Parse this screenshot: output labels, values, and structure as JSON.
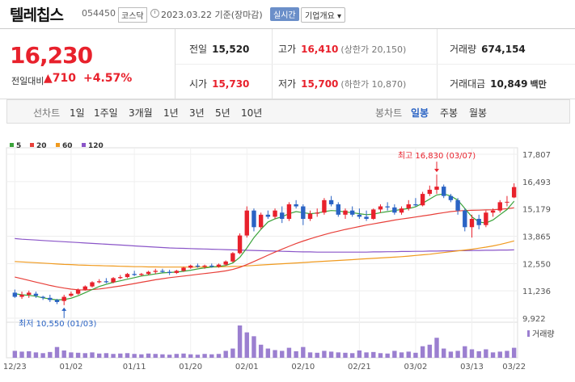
{
  "header": {
    "name": "텔레칩스",
    "code": "054450",
    "market": "코스닥",
    "date_text": "2023.03.22  기준(장마감)",
    "realtime": "실시간",
    "company_info": "기업개요 ▾"
  },
  "price": {
    "current": "16,230",
    "change_label": "전일대비",
    "change": "▲710",
    "change_pct": "+4.57%"
  },
  "summary": {
    "prev_label": "전일",
    "prev": "15,520",
    "high_label": "고가",
    "high": "16,410",
    "high_note": "(상한가 20,150)",
    "volume_label": "거래량",
    "volume": "674,154",
    "open_label": "시가",
    "open": "15,730",
    "low_label": "저가",
    "low": "15,700",
    "low_note": "(하한가 10,870)",
    "amount_label": "거래대금",
    "amount": "10,849",
    "amount_unit": "백만"
  },
  "periods": {
    "line_label": "선차트",
    "items": [
      "1일",
      "1주일",
      "3개월",
      "1년",
      "3년",
      "5년",
      "10년"
    ],
    "candle_label": "봉차트",
    "candle_items": [
      "일봉",
      "주봉",
      "월봉"
    ],
    "selected_candle": "일봉"
  },
  "chart_data": {
    "type": "candlestick",
    "legend": [
      {
        "label": "5",
        "color": "#3aa33a"
      },
      {
        "label": "20",
        "color": "#e8403a"
      },
      {
        "label": "60",
        "color": "#f09a1e"
      },
      {
        "label": "120",
        "color": "#8a55c8"
      }
    ],
    "y_ticks": [
      "17,807",
      "16,493",
      "15,179",
      "13,865",
      "12,550",
      "11,236",
      "9,922"
    ],
    "y_range": [
      9922,
      17807
    ],
    "x_ticks": [
      "12/23",
      "01/02",
      "01/11",
      "01/20",
      "02/01",
      "02/10",
      "02/21",
      "03/02",
      "03/13",
      "03/22"
    ],
    "annotations": {
      "max": "최고 16,830 (03/07)",
      "min": "최저 10,550 (01/03)"
    },
    "volume_label": "거래량",
    "candles": [
      [
        11150,
        11300,
        10900,
        10950
      ],
      [
        10950,
        11200,
        10850,
        11050
      ],
      [
        11050,
        11250,
        10900,
        11150
      ],
      [
        11100,
        11200,
        10900,
        11000
      ],
      [
        10950,
        11000,
        10800,
        10900
      ],
      [
        10900,
        11050,
        10700,
        10800
      ],
      [
        10800,
        10850,
        10600,
        10700
      ],
      [
        10750,
        11050,
        10550,
        10950
      ],
      [
        11000,
        11200,
        10950,
        11100
      ],
      [
        11100,
        11350,
        11050,
        11300
      ],
      [
        11300,
        11500,
        11250,
        11450
      ],
      [
        11450,
        11700,
        11400,
        11650
      ],
      [
        11650,
        11800,
        11600,
        11700
      ],
      [
        11700,
        11850,
        11600,
        11650
      ],
      [
        11650,
        11900,
        11600,
        11850
      ],
      [
        11850,
        12000,
        11800,
        11900
      ],
      [
        11900,
        12100,
        11850,
        12050
      ],
      [
        12050,
        12200,
        11950,
        12000
      ],
      [
        12000,
        12100,
        11950,
        12050
      ],
      [
        12050,
        12200,
        12000,
        12150
      ],
      [
        12150,
        12300,
        12050,
        12200
      ],
      [
        12200,
        12300,
        12100,
        12150
      ],
      [
        12150,
        12250,
        12000,
        12100
      ],
      [
        12100,
        12250,
        12050,
        12200
      ],
      [
        12200,
        12400,
        12150,
        12350
      ],
      [
        12350,
        12500,
        12300,
        12450
      ],
      [
        12450,
        12550,
        12350,
        12400
      ],
      [
        12400,
        12500,
        12300,
        12450
      ],
      [
        12450,
        12550,
        12350,
        12400
      ],
      [
        12400,
        12550,
        12350,
        12500
      ],
      [
        12500,
        12700,
        12450,
        12650
      ],
      [
        12650,
        13100,
        12600,
        13050
      ],
      [
        13050,
        14000,
        13000,
        13900
      ],
      [
        13900,
        15300,
        13800,
        15100
      ],
      [
        15100,
        15200,
        14100,
        14300
      ],
      [
        14300,
        15000,
        14200,
        14900
      ],
      [
        14900,
        15100,
        14700,
        14800
      ],
      [
        14800,
        15200,
        14700,
        15100
      ],
      [
        15000,
        15300,
        14500,
        14700
      ],
      [
        14700,
        15500,
        14600,
        15400
      ],
      [
        15400,
        15600,
        15200,
        15300
      ],
      [
        15300,
        15400,
        14400,
        14700
      ],
      [
        14700,
        15100,
        14600,
        14950
      ],
      [
        14950,
        15200,
        14800,
        15000
      ],
      [
        15000,
        15700,
        14900,
        15600
      ],
      [
        15600,
        15800,
        15300,
        15400
      ],
      [
        15400,
        15500,
        14800,
        14900
      ],
      [
        14900,
        15200,
        14700,
        15100
      ],
      [
        15100,
        15300,
        14800,
        14900
      ],
      [
        14900,
        15200,
        14700,
        14800
      ],
      [
        14800,
        15100,
        14600,
        14700
      ],
      [
        14700,
        15200,
        14650,
        15150
      ],
      [
        15150,
        15400,
        15000,
        15300
      ],
      [
        15300,
        15500,
        15100,
        15250
      ],
      [
        15250,
        15400,
        14900,
        15000
      ],
      [
        15000,
        15300,
        14900,
        15200
      ],
      [
        15200,
        15600,
        15100,
        15400
      ],
      [
        15400,
        15700,
        15300,
        15350
      ],
      [
        15350,
        16000,
        15300,
        15900
      ],
      [
        15900,
        16300,
        15800,
        16100
      ],
      [
        16100,
        16830,
        15900,
        16250
      ],
      [
        16250,
        16350,
        15700,
        15800
      ],
      [
        15800,
        15900,
        15500,
        15600
      ],
      [
        15600,
        15700,
        14900,
        15100
      ],
      [
        15100,
        15200,
        14100,
        14300
      ],
      [
        14300,
        14900,
        13800,
        14700
      ],
      [
        14700,
        14900,
        14200,
        14400
      ],
      [
        14400,
        15100,
        14300,
        15000
      ],
      [
        15000,
        15200,
        14800,
        15100
      ],
      [
        15100,
        15600,
        15000,
        15500
      ],
      [
        15500,
        15800,
        15300,
        15520
      ],
      [
        15730,
        16410,
        15700,
        16230
      ]
    ],
    "ma5": [
      11100,
      11050,
      11020,
      10980,
      10900,
      10850,
      10800,
      10820,
      10880,
      11000,
      11150,
      11300,
      11450,
      11550,
      11650,
      11720,
      11800,
      11870,
      11950,
      12000,
      12050,
      12100,
      12120,
      12140,
      12180,
      12230,
      12290,
      12340,
      12380,
      12410,
      12460,
      12580,
      12850,
      13300,
      13800,
      14200,
      14550,
      14700,
      14800,
      14950,
      15050,
      15000,
      14950,
      14980,
      15050,
      15100,
      15080,
      15030,
      15000,
      14950,
      14900,
      14930,
      15000,
      15050,
      15100,
      15150,
      15200,
      15280,
      15450,
      15650,
      15850,
      15900,
      15800,
      15600,
      15200,
      14800,
      14550,
      14500,
      14650,
      14900,
      15150,
      15550
    ],
    "ma20": [
      11900,
      11820,
      11740,
      11660,
      11580,
      11500,
      11430,
      11370,
      11320,
      11290,
      11280,
      11300,
      11330,
      11370,
      11420,
      11470,
      11530,
      11590,
      11650,
      11710,
      11770,
      11820,
      11870,
      11910,
      11950,
      11990,
      12030,
      12070,
      12110,
      12150,
      12200,
      12270,
      12370,
      12500,
      12650,
      12800,
      12950,
      13100,
      13240,
      13380,
      13510,
      13630,
      13740,
      13840,
      13940,
      14030,
      14110,
      14190,
      14260,
      14330,
      14400,
      14460,
      14520,
      14580,
      14640,
      14690,
      14740,
      14790,
      14840,
      14890,
      14950,
      15000,
      15050,
      15080,
      15100,
      15110,
      15120,
      15130,
      15140,
      15160,
      15190,
      15230
    ],
    "ma60": [
      12650,
      12630,
      12610,
      12590,
      12570,
      12550,
      12530,
      12510,
      12500,
      12480,
      12470,
      12460,
      12450,
      12440,
      12430,
      12420,
      12410,
      12400,
      12400,
      12390,
      12390,
      12380,
      12380,
      12380,
      12380,
      12380,
      12380,
      12380,
      12390,
      12390,
      12400,
      12410,
      12420,
      12440,
      12460,
      12480,
      12500,
      12520,
      12540,
      12560,
      12580,
      12600,
      12620,
      12640,
      12660,
      12680,
      12700,
      12720,
      12740,
      12760,
      12780,
      12800,
      12820,
      12840,
      12860,
      12880,
      12910,
      12940,
      12970,
      13000,
      13040,
      13080,
      13120,
      13160,
      13200,
      13240,
      13290,
      13340,
      13400,
      13470,
      13550,
      13640
    ],
    "ma120": [
      13750,
      13720,
      13700,
      13680,
      13660,
      13640,
      13620,
      13600,
      13580,
      13560,
      13540,
      13520,
      13500,
      13480,
      13460,
      13440,
      13420,
      13400,
      13380,
      13360,
      13340,
      13320,
      13300,
      13290,
      13280,
      13270,
      13260,
      13250,
      13240,
      13230,
      13220,
      13210,
      13200,
      13190,
      13180,
      13170,
      13160,
      13150,
      13140,
      13130,
      13120,
      13110,
      13110,
      13100,
      13100,
      13100,
      13100,
      13100,
      13100,
      13100,
      13100,
      13110,
      13110,
      13120,
      13120,
      13130,
      13130,
      13140,
      13140,
      13150,
      13150,
      13160,
      13160,
      13170,
      13170,
      13180,
      13180,
      13190,
      13190,
      13200,
      13200,
      13210
    ],
    "volumes": [
      90,
      80,
      85,
      70,
      60,
      75,
      140,
      95,
      70,
      65,
      60,
      70,
      55,
      60,
      50,
      55,
      60,
      50,
      45,
      55,
      50,
      45,
      40,
      50,
      55,
      45,
      40,
      50,
      45,
      50,
      90,
      120,
      420,
      330,
      280,
      170,
      120,
      100,
      90,
      130,
      85,
      140,
      70,
      65,
      90,
      80,
      70,
      65,
      60,
      95,
      70,
      75,
      60,
      55,
      90,
      70,
      80,
      65,
      150,
      170,
      260,
      120,
      80,
      90,
      150,
      110,
      85,
      110,
      70,
      80,
      90,
      130
    ]
  }
}
